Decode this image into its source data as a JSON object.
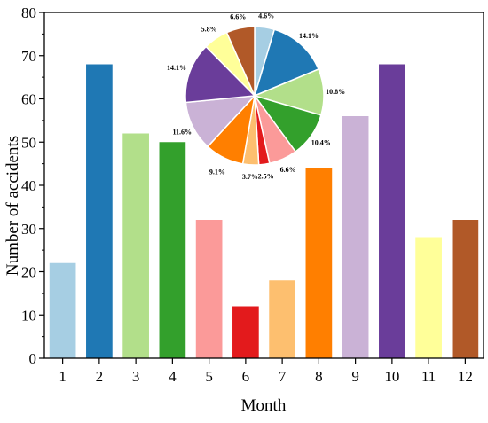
{
  "chart_data": [
    {
      "type": "bar",
      "title": "",
      "xlabel": "Month",
      "ylabel": "Number of accidents",
      "categories": [
        "1",
        "2",
        "3",
        "4",
        "5",
        "6",
        "7",
        "8",
        "9",
        "10",
        "11",
        "12"
      ],
      "values": [
        22,
        68,
        52,
        50,
        32,
        12,
        18,
        44,
        56,
        68,
        28,
        32
      ],
      "colors": [
        "#a6cee3",
        "#1f78b4",
        "#b2df8a",
        "#33a02c",
        "#fb9a99",
        "#e31a1c",
        "#fdbf6f",
        "#ff7f00",
        "#cab2d6",
        "#6a3d9a",
        "#ffff99",
        "#b15928"
      ],
      "ylim": [
        0,
        80
      ],
      "yticks": [
        0,
        10,
        20,
        30,
        40,
        50,
        60,
        70,
        80
      ],
      "grid": false,
      "legend": "none"
    },
    {
      "type": "pie",
      "title": "",
      "start": "top, clockwise",
      "slices": [
        {
          "month": "1",
          "value": 4.6,
          "label": "4.6%",
          "color": "#a6cee3"
        },
        {
          "month": "2",
          "value": 14.1,
          "label": "14.1%",
          "color": "#1f78b4"
        },
        {
          "month": "3",
          "value": 10.8,
          "label": "10.8%",
          "color": "#b2df8a"
        },
        {
          "month": "4",
          "value": 10.4,
          "label": "10.4%",
          "color": "#33a02c"
        },
        {
          "month": "5",
          "value": 6.6,
          "label": "6.6%",
          "color": "#fb9a99"
        },
        {
          "month": "6",
          "value": 2.5,
          "label": "2.5%",
          "color": "#e31a1c"
        },
        {
          "month": "7",
          "value": 3.7,
          "label": "3.7%",
          "color": "#fdbf6f"
        },
        {
          "month": "8",
          "value": 9.1,
          "label": "9.1%",
          "color": "#ff7f00"
        },
        {
          "month": "9",
          "value": 11.6,
          "label": "11.6%",
          "color": "#cab2d6"
        },
        {
          "month": "10",
          "value": 14.1,
          "label": "14.1%",
          "color": "#6a3d9a"
        },
        {
          "month": "11",
          "value": 5.8,
          "label": "5.8%",
          "color": "#ffff99"
        },
        {
          "month": "12",
          "value": 6.6,
          "label": "6.6%",
          "color": "#b15928"
        }
      ]
    }
  ]
}
